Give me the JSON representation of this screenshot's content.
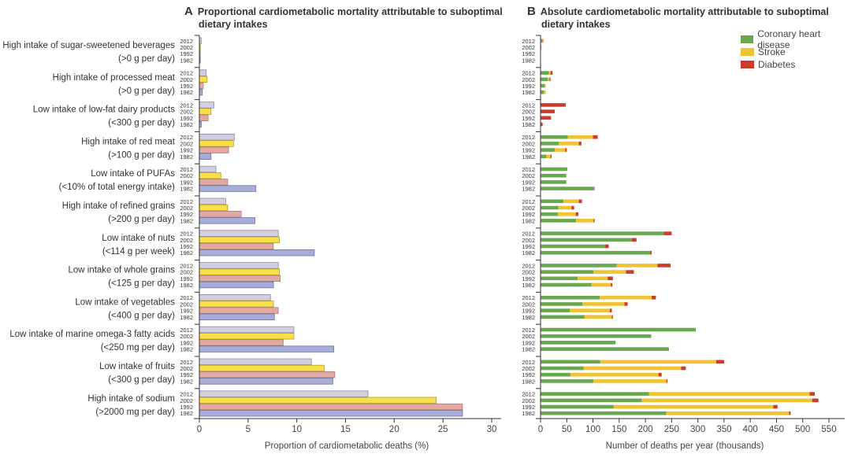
{
  "panel_a": {
    "letter": "A",
    "title_line1": "Proportional cardiometabolic mortality attributable to suboptimal",
    "title_line2": "dietary intakes"
  },
  "panel_b": {
    "letter": "B",
    "title_line1": "Absolute cardiometabolic mortality attributable to suboptimal",
    "title_line2": "dietary intakes"
  },
  "legend": [
    {
      "label": "Coronary heart disease",
      "color": "#6aa84f"
    },
    {
      "label": "Stroke",
      "color": "#f1c232"
    },
    {
      "label": "Diabetes",
      "color": "#cc3b2b"
    }
  ],
  "year_colors": {
    "2012": "#d3cfe2",
    "2002": "#f9e04b",
    "1992": "#e2a9a2",
    "1982": "#a5add8"
  },
  "chart_data": [
    {
      "type": "bar",
      "orientation": "horizontal",
      "title": "Proportional cardiometabolic mortality attributable to suboptimal dietary intakes",
      "xlabel": "Proportion of cardiometabolic deaths (%)",
      "ylabel": "",
      "xlim": [
        0,
        30
      ],
      "xticks": [
        0,
        5,
        10,
        15,
        20,
        25,
        30
      ],
      "grid": false,
      "years": [
        "2012",
        "2002",
        "1992",
        "1982"
      ],
      "categories": [
        {
          "line1": "High intake of sugar-sweetened beverages",
          "line2": "(>0 g per day)",
          "values": [
            0.2,
            0.1,
            0.1,
            0.1
          ]
        },
        {
          "line1": "High intake of processed meat",
          "line2": "(>0 g per day)",
          "values": [
            0.7,
            0.8,
            0.4,
            0.3
          ]
        },
        {
          "line1": "Low intake of low-fat dairy products",
          "line2": "(<300 g per day)",
          "values": [
            1.5,
            1.2,
            0.9,
            0.2
          ]
        },
        {
          "line1": "High intake of red meat",
          "line2": "(>100 g per day)",
          "values": [
            3.6,
            3.5,
            3.0,
            1.2
          ]
        },
        {
          "line1": "Low intake of PUFAs",
          "line2": "(<10% of total energy intake)",
          "values": [
            1.7,
            2.2,
            2.9,
            5.8
          ]
        },
        {
          "line1": "High intake of refined grains",
          "line2": "(>200 g per day)",
          "values": [
            2.7,
            2.9,
            4.3,
            5.7
          ]
        },
        {
          "line1": "Low intake of nuts",
          "line2": "(<114 g per week)",
          "values": [
            8.1,
            8.2,
            7.6,
            11.8
          ]
        },
        {
          "line1": "Low intake of whole grains",
          "line2": "(<125 g per day)",
          "values": [
            8.1,
            8.2,
            8.3,
            7.6
          ]
        },
        {
          "line1": "Low intake of vegetables",
          "line2": "(<400 g per day)",
          "values": [
            7.3,
            7.6,
            8.1,
            7.7
          ]
        },
        {
          "line1": "Low intake of marine omega-3 fatty acids",
          "line2": "(<250 mg per day)",
          "values": [
            9.7,
            9.7,
            8.6,
            13.8
          ]
        },
        {
          "line1": "Low intake of fruits",
          "line2": "(<300 g per day)",
          "values": [
            11.5,
            12.8,
            13.9,
            13.7
          ]
        },
        {
          "line1": "High intake of sodium",
          "line2": "(>2000 mg per day)",
          "values": [
            17.3,
            24.3,
            27.0,
            27.0
          ]
        }
      ]
    },
    {
      "type": "bar",
      "orientation": "horizontal",
      "stacked": true,
      "title": "Absolute cardiometabolic mortality attributable to suboptimal dietary intakes",
      "xlabel": "Number of deaths per year (thousands)",
      "ylabel": "",
      "xlim": [
        0,
        580
      ],
      "xticks": [
        0,
        50,
        100,
        150,
        200,
        250,
        300,
        350,
        400,
        450,
        500,
        550
      ],
      "grid": false,
      "legend_position": "top-right",
      "years": [
        "2012",
        "2002",
        "1992",
        "1982"
      ],
      "series_names": [
        "Coronary heart disease",
        "Stroke",
        "Diabetes"
      ],
      "categories": [
        {
          "name": "High intake of sugar-sweetened beverages",
          "values": [
            [
              3,
              1,
              1
            ],
            [
              0,
              0,
              1
            ],
            [
              0,
              0,
              0
            ],
            [
              0,
              0,
              0
            ]
          ]
        },
        {
          "name": "High intake of processed meat",
          "values": [
            [
              16,
              3,
              4
            ],
            [
              14,
              3,
              2
            ],
            [
              8,
              2,
              0
            ],
            [
              6,
              4,
              0
            ]
          ]
        },
        {
          "name": "Low intake of low-fat dairy products",
          "values": [
            [
              0,
              0,
              48
            ],
            [
              0,
              0,
              27
            ],
            [
              0,
              0,
              20
            ],
            [
              0,
              0,
              4
            ]
          ]
        },
        {
          "name": "High intake of red meat",
          "values": [
            [
              52,
              48,
              9
            ],
            [
              35,
              38,
              5
            ],
            [
              27,
              20,
              3
            ],
            [
              11,
              8,
              2
            ]
          ]
        },
        {
          "name": "Low intake of PUFAs",
          "values": [
            [
              51,
              0,
              0
            ],
            [
              49,
              0,
              0
            ],
            [
              49,
              0,
              0
            ],
            [
              103,
              0,
              0
            ]
          ]
        },
        {
          "name": "High intake of refined grains",
          "values": [
            [
              44,
              29,
              6
            ],
            [
              34,
              25,
              5
            ],
            [
              33,
              34,
              5
            ],
            [
              68,
              33,
              2
            ]
          ]
        },
        {
          "name": "Low intake of nuts",
          "values": [
            [
              235,
              0,
              15
            ],
            [
              174,
              0,
              9
            ],
            [
              123,
              0,
              7
            ],
            [
              209,
              0,
              3
            ]
          ]
        },
        {
          "name": "Low intake of whole grains",
          "values": [
            [
              145,
              78,
              25
            ],
            [
              101,
              62,
              15
            ],
            [
              71,
              57,
              10
            ],
            [
              97,
              37,
              3
            ]
          ]
        },
        {
          "name": "Low intake of vegetables",
          "values": [
            [
              113,
              99,
              8
            ],
            [
              80,
              80,
              6
            ],
            [
              56,
              76,
              4
            ],
            [
              84,
              52,
              2
            ]
          ]
        },
        {
          "name": "Low intake of marine omega-3 fatty acids",
          "values": [
            [
              296,
              0,
              0
            ],
            [
              211,
              0,
              0
            ],
            [
              143,
              0,
              0
            ],
            [
              245,
              0,
              0
            ]
          ]
        },
        {
          "name": "Low intake of fruits",
          "values": [
            [
              114,
              221,
              15
            ],
            [
              82,
              186,
              9
            ],
            [
              57,
              168,
              6
            ],
            [
              101,
              139,
              2
            ]
          ]
        },
        {
          "name": "High intake of sodium",
          "values": [
            [
              207,
              306,
              10
            ],
            [
              193,
              325,
              12
            ],
            [
              139,
              305,
              8
            ],
            [
              240,
              234,
              3
            ]
          ]
        }
      ]
    }
  ]
}
